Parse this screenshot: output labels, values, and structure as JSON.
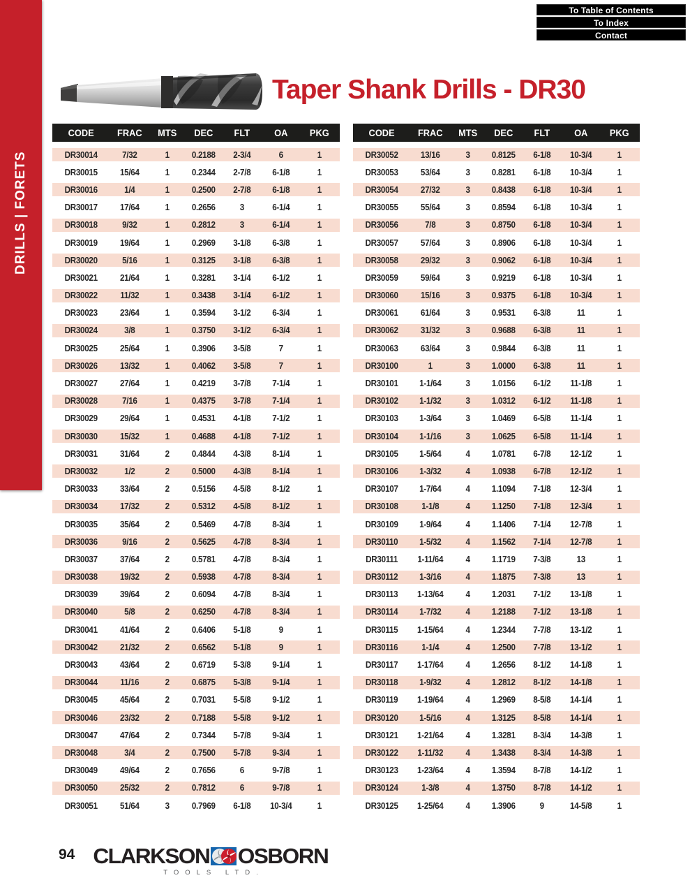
{
  "sidebar": {
    "label": "DRILLS | FORETS"
  },
  "nav": {
    "buttons": [
      {
        "label": "To Table of Contents"
      },
      {
        "label": "To Index"
      },
      {
        "label": "Contact"
      }
    ]
  },
  "title": "Taper Shank Drills - DR30",
  "columns": [
    "CODE",
    "FRAC",
    "MTS",
    "DEC",
    "FLT",
    "OA",
    "PKG"
  ],
  "tables": {
    "left": {
      "rows": [
        [
          "DR30014",
          "7/32",
          "1",
          "0.2188",
          "2-3/4",
          "6",
          "1"
        ],
        [
          "DR30015",
          "15/64",
          "1",
          "0.2344",
          "2-7/8",
          "6-1/8",
          "1"
        ],
        [
          "DR30016",
          "1/4",
          "1",
          "0.2500",
          "2-7/8",
          "6-1/8",
          "1"
        ],
        [
          "DR30017",
          "17/64",
          "1",
          "0.2656",
          "3",
          "6-1/4",
          "1"
        ],
        [
          "DR30018",
          "9/32",
          "1",
          "0.2812",
          "3",
          "6-1/4",
          "1"
        ],
        [
          "DR30019",
          "19/64",
          "1",
          "0.2969",
          "3-1/8",
          "6-3/8",
          "1"
        ],
        [
          "DR30020",
          "5/16",
          "1",
          "0.3125",
          "3-1/8",
          "6-3/8",
          "1"
        ],
        [
          "DR30021",
          "21/64",
          "1",
          "0.3281",
          "3-1/4",
          "6-1/2",
          "1"
        ],
        [
          "DR30022",
          "11/32",
          "1",
          "0.3438",
          "3-1/4",
          "6-1/2",
          "1"
        ],
        [
          "DR30023",
          "23/64",
          "1",
          "0.3594",
          "3-1/2",
          "6-3/4",
          "1"
        ],
        [
          "DR30024",
          "3/8",
          "1",
          "0.3750",
          "3-1/2",
          "6-3/4",
          "1"
        ],
        [
          "DR30025",
          "25/64",
          "1",
          "0.3906",
          "3-5/8",
          "7",
          "1"
        ],
        [
          "DR30026",
          "13/32",
          "1",
          "0.4062",
          "3-5/8",
          "7",
          "1"
        ],
        [
          "DR30027",
          "27/64",
          "1",
          "0.4219",
          "3-7/8",
          "7-1/4",
          "1"
        ],
        [
          "DR30028",
          "7/16",
          "1",
          "0.4375",
          "3-7/8",
          "7-1/4",
          "1"
        ],
        [
          "DR30029",
          "29/64",
          "1",
          "0.4531",
          "4-1/8",
          "7-1/2",
          "1"
        ],
        [
          "DR30030",
          "15/32",
          "1",
          "0.4688",
          "4-1/8",
          "7-1/2",
          "1"
        ],
        [
          "DR30031",
          "31/64",
          "2",
          "0.4844",
          "4-3/8",
          "8-1/4",
          "1"
        ],
        [
          "DR30032",
          "1/2",
          "2",
          "0.5000",
          "4-3/8",
          "8-1/4",
          "1"
        ],
        [
          "DR30033",
          "33/64",
          "2",
          "0.5156",
          "4-5/8",
          "8-1/2",
          "1"
        ],
        [
          "DR30034",
          "17/32",
          "2",
          "0.5312",
          "4-5/8",
          "8-1/2",
          "1"
        ],
        [
          "DR30035",
          "35/64",
          "2",
          "0.5469",
          "4-7/8",
          "8-3/4",
          "1"
        ],
        [
          "DR30036",
          "9/16",
          "2",
          "0.5625",
          "4-7/8",
          "8-3/4",
          "1"
        ],
        [
          "DR30037",
          "37/64",
          "2",
          "0.5781",
          "4-7/8",
          "8-3/4",
          "1"
        ],
        [
          "DR30038",
          "19/32",
          "2",
          "0.5938",
          "4-7/8",
          "8-3/4",
          "1"
        ],
        [
          "DR30039",
          "39/64",
          "2",
          "0.6094",
          "4-7/8",
          "8-3/4",
          "1"
        ],
        [
          "DR30040",
          "5/8",
          "2",
          "0.6250",
          "4-7/8",
          "8-3/4",
          "1"
        ],
        [
          "DR30041",
          "41/64",
          "2",
          "0.6406",
          "5-1/8",
          "9",
          "1"
        ],
        [
          "DR30042",
          "21/32",
          "2",
          "0.6562",
          "5-1/8",
          "9",
          "1"
        ],
        [
          "DR30043",
          "43/64",
          "2",
          "0.6719",
          "5-3/8",
          "9-1/4",
          "1"
        ],
        [
          "DR30044",
          "11/16",
          "2",
          "0.6875",
          "5-3/8",
          "9-1/4",
          "1"
        ],
        [
          "DR30045",
          "45/64",
          "2",
          "0.7031",
          "5-5/8",
          "9-1/2",
          "1"
        ],
        [
          "DR30046",
          "23/32",
          "2",
          "0.7188",
          "5-5/8",
          "9-1/2",
          "1"
        ],
        [
          "DR30047",
          "47/64",
          "2",
          "0.7344",
          "5-7/8",
          "9-3/4",
          "1"
        ],
        [
          "DR30048",
          "3/4",
          "2",
          "0.7500",
          "5-7/8",
          "9-3/4",
          "1"
        ],
        [
          "DR30049",
          "49/64",
          "2",
          "0.7656",
          "6",
          "9-7/8",
          "1"
        ],
        [
          "DR30050",
          "25/32",
          "2",
          "0.7812",
          "6",
          "9-7/8",
          "1"
        ],
        [
          "DR30051",
          "51/64",
          "3",
          "0.7969",
          "6-1/8",
          "10-3/4",
          "1"
        ]
      ]
    },
    "right": {
      "rows": [
        [
          "DR30052",
          "13/16",
          "3",
          "0.8125",
          "6-1/8",
          "10-3/4",
          "1"
        ],
        [
          "DR30053",
          "53/64",
          "3",
          "0.8281",
          "6-1/8",
          "10-3/4",
          "1"
        ],
        [
          "DR30054",
          "27/32",
          "3",
          "0.8438",
          "6-1/8",
          "10-3/4",
          "1"
        ],
        [
          "DR30055",
          "55/64",
          "3",
          "0.8594",
          "6-1/8",
          "10-3/4",
          "1"
        ],
        [
          "DR30056",
          "7/8",
          "3",
          "0.8750",
          "6-1/8",
          "10-3/4",
          "1"
        ],
        [
          "DR30057",
          "57/64",
          "3",
          "0.8906",
          "6-1/8",
          "10-3/4",
          "1"
        ],
        [
          "DR30058",
          "29/32",
          "3",
          "0.9062",
          "6-1/8",
          "10-3/4",
          "1"
        ],
        [
          "DR30059",
          "59/64",
          "3",
          "0.9219",
          "6-1/8",
          "10-3/4",
          "1"
        ],
        [
          "DR30060",
          "15/16",
          "3",
          "0.9375",
          "6-1/8",
          "10-3/4",
          "1"
        ],
        [
          "DR30061",
          "61/64",
          "3",
          "0.9531",
          "6-3/8",
          "11",
          "1"
        ],
        [
          "DR30062",
          "31/32",
          "3",
          "0.9688",
          "6-3/8",
          "11",
          "1"
        ],
        [
          "DR30063",
          "63/64",
          "3",
          "0.9844",
          "6-3/8",
          "11",
          "1"
        ],
        [
          "DR30100",
          "1",
          "3",
          "1.0000",
          "6-3/8",
          "11",
          "1"
        ],
        [
          "DR30101",
          "1-1/64",
          "3",
          "1.0156",
          "6-1/2",
          "11-1/8",
          "1"
        ],
        [
          "DR30102",
          "1-1/32",
          "3",
          "1.0312",
          "6-1/2",
          "11-1/8",
          "1"
        ],
        [
          "DR30103",
          "1-3/64",
          "3",
          "1.0469",
          "6-5/8",
          "11-1/4",
          "1"
        ],
        [
          "DR30104",
          "1-1/16",
          "3",
          "1.0625",
          "6-5/8",
          "11-1/4",
          "1"
        ],
        [
          "DR30105",
          "1-5/64",
          "4",
          "1.0781",
          "6-7/8",
          "12-1/2",
          "1"
        ],
        [
          "DR30106",
          "1-3/32",
          "4",
          "1.0938",
          "6-7/8",
          "12-1/2",
          "1"
        ],
        [
          "DR30107",
          "1-7/64",
          "4",
          "1.1094",
          "7-1/8",
          "12-3/4",
          "1"
        ],
        [
          "DR30108",
          "1-1/8",
          "4",
          "1.1250",
          "7-1/8",
          "12-3/4",
          "1"
        ],
        [
          "DR30109",
          "1-9/64",
          "4",
          "1.1406",
          "7-1/4",
          "12-7/8",
          "1"
        ],
        [
          "DR30110",
          "1-5/32",
          "4",
          "1.1562",
          "7-1/4",
          "12-7/8",
          "1"
        ],
        [
          "DR30111",
          "1-11/64",
          "4",
          "1.1719",
          "7-3/8",
          "13",
          "1"
        ],
        [
          "DR30112",
          "1-3/16",
          "4",
          "1.1875",
          "7-3/8",
          "13",
          "1"
        ],
        [
          "DR30113",
          "1-13/64",
          "4",
          "1.2031",
          "7-1/2",
          "13-1/8",
          "1"
        ],
        [
          "DR30114",
          "1-7/32",
          "4",
          "1.2188",
          "7-1/2",
          "13-1/8",
          "1"
        ],
        [
          "DR30115",
          "1-15/64",
          "4",
          "1.2344",
          "7-7/8",
          "13-1/2",
          "1"
        ],
        [
          "DR30116",
          "1-1/4",
          "4",
          "1.2500",
          "7-7/8",
          "13-1/2",
          "1"
        ],
        [
          "DR30117",
          "1-17/64",
          "4",
          "1.2656",
          "8-1/2",
          "14-1/8",
          "1"
        ],
        [
          "DR30118",
          "1-9/32",
          "4",
          "1.2812",
          "8-1/2",
          "14-1/8",
          "1"
        ],
        [
          "DR30119",
          "1-19/64",
          "4",
          "1.2969",
          "8-5/8",
          "14-1/4",
          "1"
        ],
        [
          "DR30120",
          "1-5/16",
          "4",
          "1.3125",
          "8-5/8",
          "14-1/4",
          "1"
        ],
        [
          "DR30121",
          "1-21/64",
          "4",
          "1.3281",
          "8-3/4",
          "14-3/8",
          "1"
        ],
        [
          "DR30122",
          "1-11/32",
          "4",
          "1.3438",
          "8-3/4",
          "14-3/8",
          "1"
        ],
        [
          "DR30123",
          "1-23/64",
          "4",
          "1.3594",
          "8-7/8",
          "14-1/2",
          "1"
        ],
        [
          "DR30124",
          "1-3/8",
          "4",
          "1.3750",
          "8-7/8",
          "14-1/2",
          "1"
        ],
        [
          "DR30125",
          "1-25/64",
          "4",
          "1.3906",
          "9",
          "14-5/8",
          "1"
        ]
      ]
    }
  },
  "footer": {
    "page_number": "94",
    "brand_left": "CLARKSON",
    "brand_right": "OSBORN",
    "brand_sub": "TOOLS LTD.",
    "emblem_icon": "pinwheel-logo"
  },
  "colors": {
    "accent_red": "#c5202a",
    "row_stripe": "#f8dcd0",
    "table_header_bg": "#1d1d1b",
    "nav_button_bg": "#000000",
    "logo_blue": "#1565ad",
    "logo_red": "#cc1f2d"
  }
}
